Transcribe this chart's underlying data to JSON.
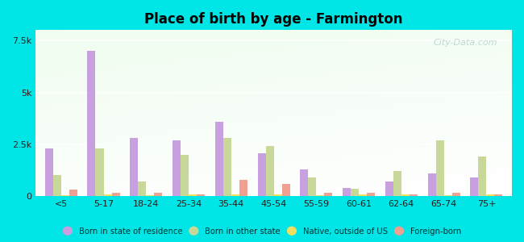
{
  "title": "Place of birth by age - Farmington",
  "categories": [
    "<5",
    "5-17",
    "18-24",
    "25-34",
    "35-44",
    "45-54",
    "55-59",
    "60-61",
    "62-64",
    "65-74",
    "75+"
  ],
  "born_in_state": [
    2300,
    7000,
    2800,
    2700,
    3600,
    2050,
    1300,
    400,
    700,
    1100,
    900
  ],
  "born_other_state": [
    1000,
    2300,
    700,
    2000,
    2800,
    2400,
    900,
    350,
    1200,
    2700,
    1900
  ],
  "native_outside_us": [
    50,
    100,
    50,
    100,
    100,
    100,
    50,
    100,
    100,
    50,
    100
  ],
  "foreign_born": [
    300,
    150,
    150,
    100,
    800,
    600,
    150,
    150,
    100,
    150,
    100
  ],
  "color_state": "#c8a0e0",
  "color_other_state": "#c8d898",
  "color_native": "#f0e060",
  "color_foreign": "#f0a090",
  "ylim": [
    0,
    8000
  ],
  "yticks": [
    0,
    2500,
    5000,
    7500
  ],
  "ytick_labels": [
    "0",
    "2.5k",
    "5k",
    "7.5k"
  ],
  "background_color": "#00e5e5",
  "watermark": "City-Data.com",
  "bar_width": 0.19,
  "legend_labels": [
    "Born in state of residence",
    "Born in other state",
    "Native, outside of US",
    "Foreign-born"
  ]
}
